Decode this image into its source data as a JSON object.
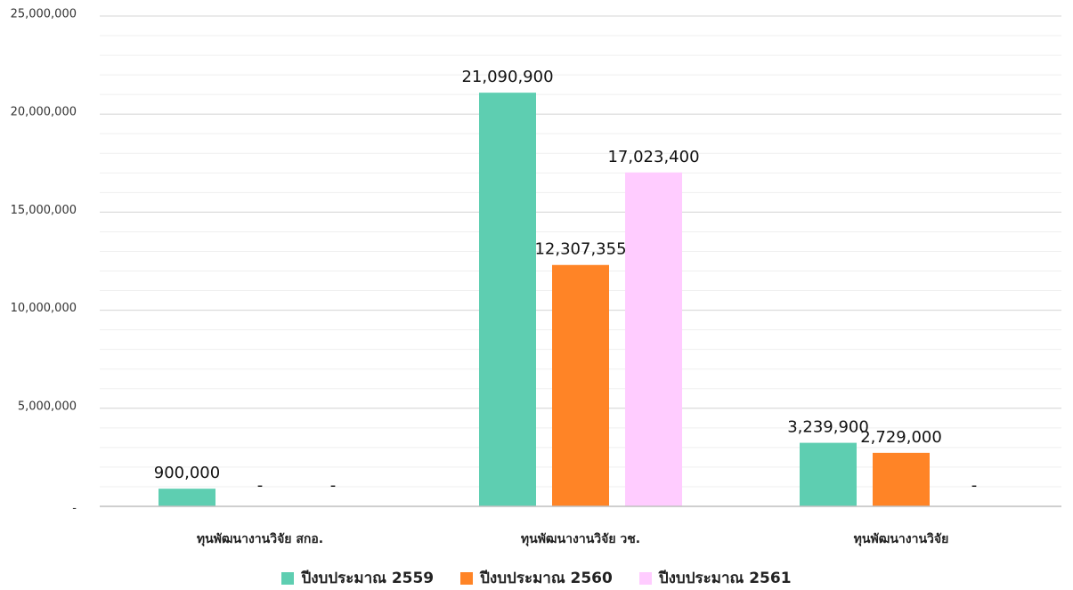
{
  "chart_data": {
    "type": "bar",
    "categories": [
      "ทุนพัฒนางานวิจัย สกอ.",
      "ทุนพัฒนางานวิจัย วช.",
      "ทุนพัฒนางานวิจัย"
    ],
    "series": [
      {
        "name": "ปีงบประมาณ 2559",
        "color": "#5ECEB1",
        "values": [
          900000,
          21090900,
          3239900
        ],
        "labels": [
          "900,000",
          "21,090,900",
          "3,239,900"
        ]
      },
      {
        "name": "ปีงบประมาณ 2560",
        "color": "#FF8426",
        "values": [
          0,
          12307355,
          2729000
        ],
        "labels": [
          "-",
          "12,307,355",
          "2,729,000"
        ]
      },
      {
        "name": "ปีงบประมาณ 2561",
        "color": "#FFCCFF",
        "values": [
          0,
          17023400,
          0
        ],
        "labels": [
          "-",
          "17,023,400",
          "-"
        ]
      }
    ],
    "yticks": [
      0,
      5000000,
      10000000,
      15000000,
      20000000,
      25000000
    ],
    "ytick_labels": [
      "-",
      "5,000,000",
      "10,000,000",
      "15,000,000",
      "20,000,000",
      "25,000,000"
    ],
    "ylim": [
      0,
      25000000
    ],
    "title": "",
    "xlabel": "",
    "ylabel": "",
    "grid": true,
    "legend_position": "bottom"
  }
}
